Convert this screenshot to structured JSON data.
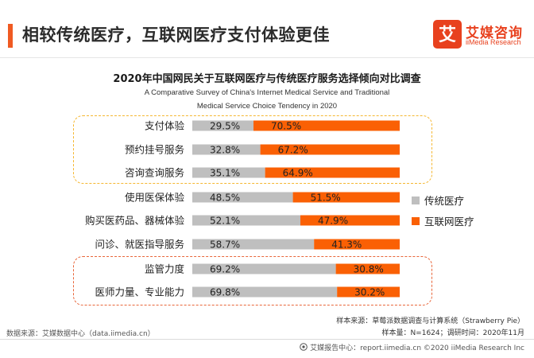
{
  "header": {
    "title": "相较传统医疗，互联网医疗支付体验更佳"
  },
  "logo": {
    "mark_char": "艾",
    "name": "艾媒咨询",
    "name_en": "iiMedia Research"
  },
  "colors": {
    "traditional": "#bfbfbf",
    "internet": "#fa6004",
    "accent": "#f05a22",
    "highlight_top": "#f5b731",
    "highlight_bottom": "#e8663a"
  },
  "chart_data": {
    "type": "bar",
    "orientation": "horizontal",
    "stacked": "percent",
    "title": "2020年中国网民关于互联网医疗与传统医疗服务选择倾向对比调查",
    "subtitle": "A Comparative Survey of China's Internet Medical Service and Traditional Medical Service Choice Tendency in 2020",
    "categories": [
      "支付体验",
      "预约挂号服务",
      "咨询查询服务",
      "使用医保体验",
      "购买医药品、器械体验",
      "问诊、就医指导服务",
      "监管力度",
      "医师力量、专业能力"
    ],
    "series": [
      {
        "name": "传统医疗",
        "values": [
          29.5,
          32.8,
          35.1,
          48.5,
          52.1,
          58.7,
          69.2,
          69.8
        ],
        "labels": [
          "29.5%",
          "32.8%",
          "35.1%",
          "48.5%",
          "52.1%",
          "58.7%",
          "69.2%",
          "69.8%"
        ]
      },
      {
        "name": "互联网医疗",
        "values": [
          70.5,
          67.2,
          64.9,
          51.5,
          47.9,
          41.3,
          30.8,
          30.2
        ],
        "labels": [
          "70.5%",
          "67.2%",
          "64.9%",
          "51.5%",
          "47.9%",
          "41.3%",
          "30.8%",
          "30.2%"
        ]
      }
    ],
    "xlim": [
      0,
      100
    ],
    "legend": "right",
    "grid": false
  },
  "source": {
    "sample_source": "样本来源：草莓派数据调查与计算系统（Strawberry Pie）",
    "sample_size": "样本量：N=1624；调研时间：2020年11月",
    "data_source": "数据来源：艾媒数据中心（data.iimedia.cn）",
    "footer": "艾媒报告中心：report.iimedia.cn ©2020 iiMedia Research Inc"
  }
}
